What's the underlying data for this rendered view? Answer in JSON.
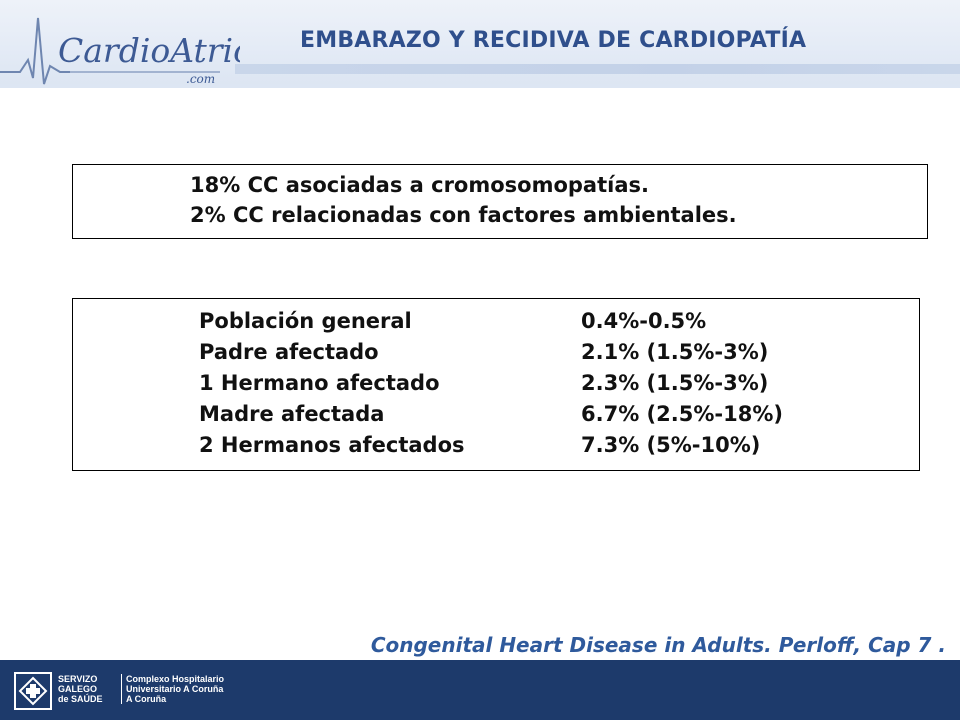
{
  "header": {
    "logo_text": "CardioAtrio",
    "logo_subtext": ".com",
    "title": "EMBARAZO Y RECIDIVA DE CARDIOPATÍA"
  },
  "box_top": {
    "lines": [
      "18% CC asociadas a cromosomopatías.",
      "2%  CC relacionadas con factores ambientales."
    ]
  },
  "recurrence_table": {
    "rows": [
      {
        "label": "Población general",
        "value": "0.4%-0.5%"
      },
      {
        "label": "Padre afectado",
        "value": "2.1% (1.5%-3%)"
      },
      {
        "label": "1 Hermano afectado",
        "value": "2.3% (1.5%-3%)"
      },
      {
        "label": "Madre afectada",
        "value": "6.7% (2.5%-18%)"
      },
      {
        "label": "2 Hermanos afectados",
        "value": "7.3% (5%-10%)"
      }
    ]
  },
  "citation": "Congenital Heart Disease in Adults. Perloff, Cap 7 .",
  "footer": {
    "org_lines": [
      "SERVIZO",
      "GALEGO",
      "de SAÚDE"
    ],
    "hospital_lines": [
      "Complexo Hospitalario",
      "Universitario A Coruña",
      "A Coruña"
    ]
  },
  "colors": {
    "title": "#2f4f8c",
    "citation": "#2f5a9c",
    "footer_bg": "#1d3a6b",
    "header_bg": "#e4ebf6"
  }
}
